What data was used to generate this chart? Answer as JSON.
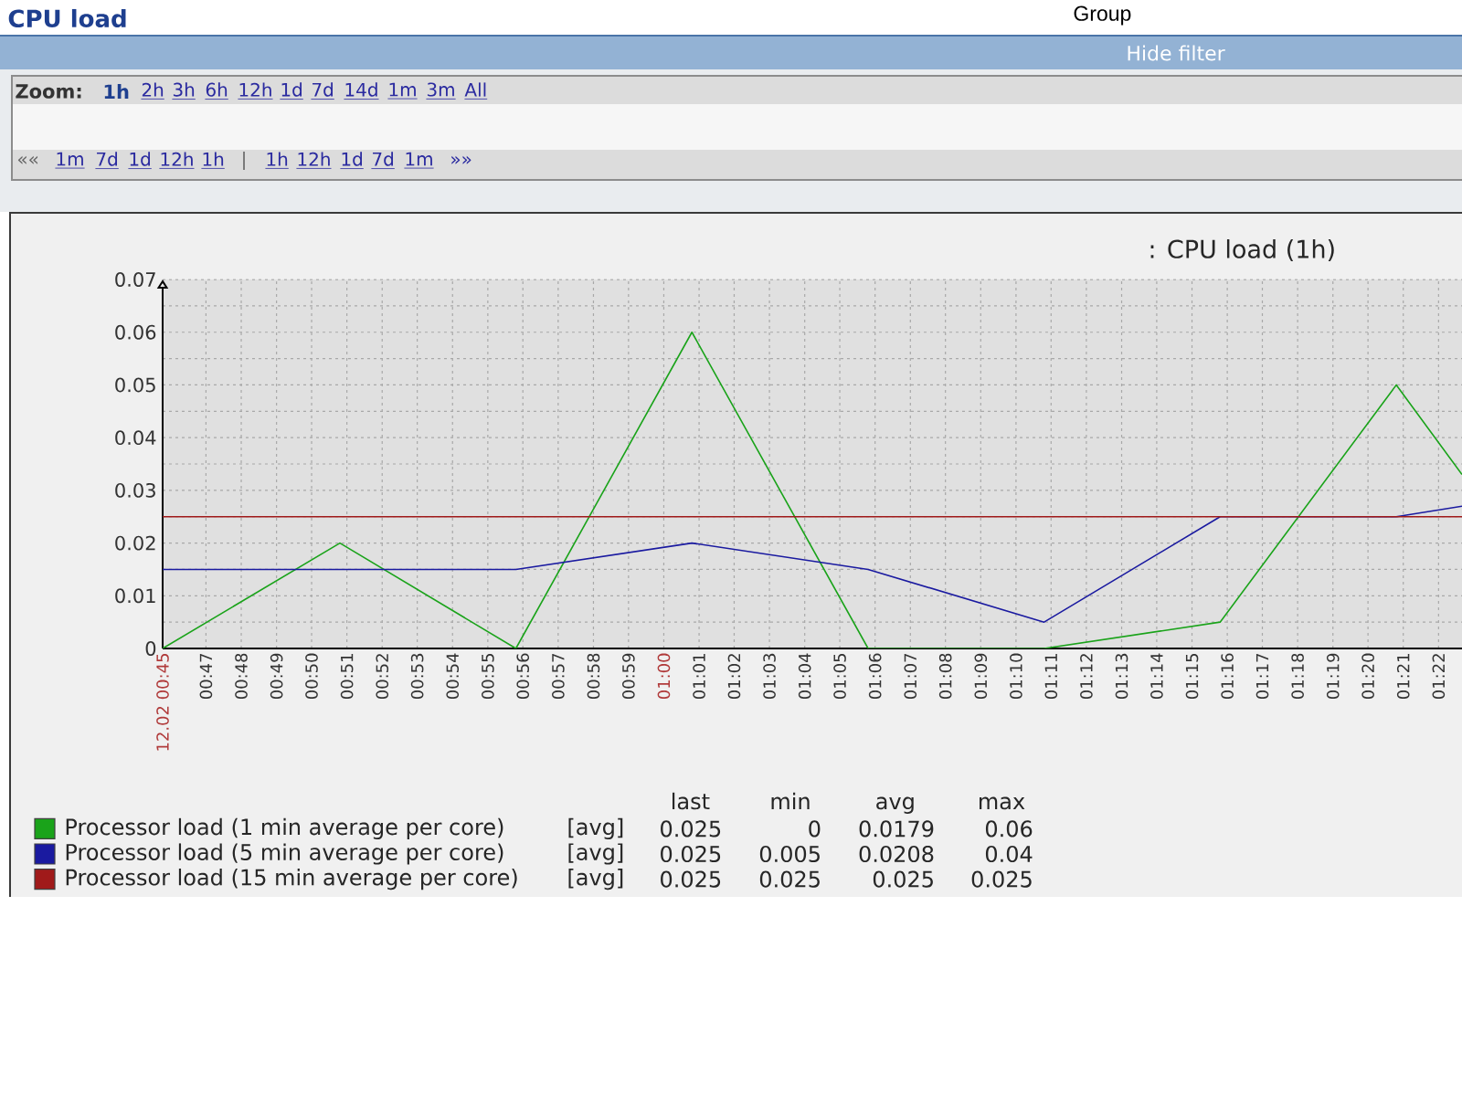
{
  "chart_data": {
    "type": "line",
    "title": "CPU load",
    "subtitle": ": CPU load (1h)",
    "x": [
      0.7628,
      0.8467,
      0.93,
      1.0133,
      1.0967,
      1.18,
      1.2633,
      1.3467,
      1.3778
    ],
    "series": [
      {
        "name": "Processor load (1 min average per core)",
        "color": "#1aa31a",
        "values": [
          0,
          0.02,
          0,
          0.06,
          0,
          0,
          0.005,
          0.05,
          0.033
        ]
      },
      {
        "name": "Processor load (5 min average per core)",
        "color": "#1a1aa0",
        "values": [
          0.015,
          0.015,
          0.015,
          0.02,
          0.015,
          0.005,
          0.025,
          0.025,
          0.027
        ]
      },
      {
        "name": "Processor load (15 min average per core)",
        "color": "#a01a1a",
        "values": [
          0.025,
          0.025,
          0.025,
          0.025,
          0.025,
          0.025,
          0.025,
          0.025,
          0.025
        ]
      }
    ],
    "xlim": [
      0.7628,
      1.3778
    ],
    "ylim": [
      0,
      0.07
    ],
    "xticks": [
      {
        "value": 0.7628,
        "label": "12.02 00:45"
      },
      {
        "value": 0.7833,
        "label": "00:47"
      },
      {
        "value": 0.8,
        "label": "00:48"
      },
      {
        "value": 0.8167,
        "label": "00:49"
      },
      {
        "value": 0.8333,
        "label": "00:50"
      },
      {
        "value": 0.85,
        "label": "00:51"
      },
      {
        "value": 0.8667,
        "label": "00:52"
      },
      {
        "value": 0.8833,
        "label": "00:53"
      },
      {
        "value": 0.9,
        "label": "00:54"
      },
      {
        "value": 0.9167,
        "label": "00:55"
      },
      {
        "value": 0.9333,
        "label": "00:56"
      },
      {
        "value": 0.95,
        "label": "00:57"
      },
      {
        "value": 0.9667,
        "label": "00:58"
      },
      {
        "value": 0.9833,
        "label": "00:59"
      },
      {
        "value": 1,
        "label": "01:00"
      },
      {
        "value": 1.0167,
        "label": "01:01"
      },
      {
        "value": 1.0333,
        "label": "01:02"
      },
      {
        "value": 1.05,
        "label": "01:03"
      },
      {
        "value": 1.0667,
        "label": "01:04"
      },
      {
        "value": 1.0833,
        "label": "01:05"
      },
      {
        "value": 1.1,
        "label": "01:06"
      },
      {
        "value": 1.1167,
        "label": "01:07"
      },
      {
        "value": 1.1333,
        "label": "01:08"
      },
      {
        "value": 1.15,
        "label": "01:09"
      },
      {
        "value": 1.1667,
        "label": "01:10"
      },
      {
        "value": 1.1833,
        "label": "01:11"
      },
      {
        "value": 1.2,
        "label": "01:12"
      },
      {
        "value": 1.2167,
        "label": "01:13"
      },
      {
        "value": 1.2333,
        "label": "01:14"
      },
      {
        "value": 1.25,
        "label": "01:15"
      },
      {
        "value": 1.2667,
        "label": "01:16"
      },
      {
        "value": 1.2833,
        "label": "01:17"
      },
      {
        "value": 1.3,
        "label": "01:18"
      },
      {
        "value": 1.3167,
        "label": "01:19"
      },
      {
        "value": 1.3333,
        "label": "01:20"
      },
      {
        "value": 1.35,
        "label": "01:21"
      },
      {
        "value": 1.3667,
        "label": "01:22"
      }
    ],
    "yticks": [
      0,
      {
        "value": 0.005,
        "label": null
      },
      0.01,
      {
        "value": 0.015,
        "label": null
      },
      0.02,
      {
        "value": 0.025,
        "label": null
      },
      0.03,
      {
        "value": 0.035,
        "label": null
      },
      0.04,
      {
        "value": 0.045,
        "label": null
      },
      0.05,
      {
        "value": 0.055,
        "label": null
      },
      0.06,
      {
        "value": 0.065,
        "label": null
      },
      0.07
    ],
    "grid": true,
    "legend": "bottom",
    "marker": "none",
    "line_style": "solid",
    "annotations": [
      "Group",
      "Hide filter",
      "Zoom:",
      "1h",
      "2h",
      "3h",
      "6h",
      "12h",
      "1d",
      "7d",
      "14d",
      "1m",
      "3m",
      "All",
      "««",
      "1m",
      "7d",
      "1d",
      "12h",
      "1h",
      "|",
      "1h",
      "12h",
      "1d",
      "7d",
      "1m",
      "»»",
      "last",
      "min",
      "avg",
      "max",
      "[avg]",
      "0.025",
      "0",
      "0.0179",
      "0.06",
      "[avg]",
      "0.025",
      "0.005",
      "0.0208",
      "0.04",
      "[avg]",
      "0.025",
      "0.025",
      "0.025",
      "0.025"
    ]
  }
}
